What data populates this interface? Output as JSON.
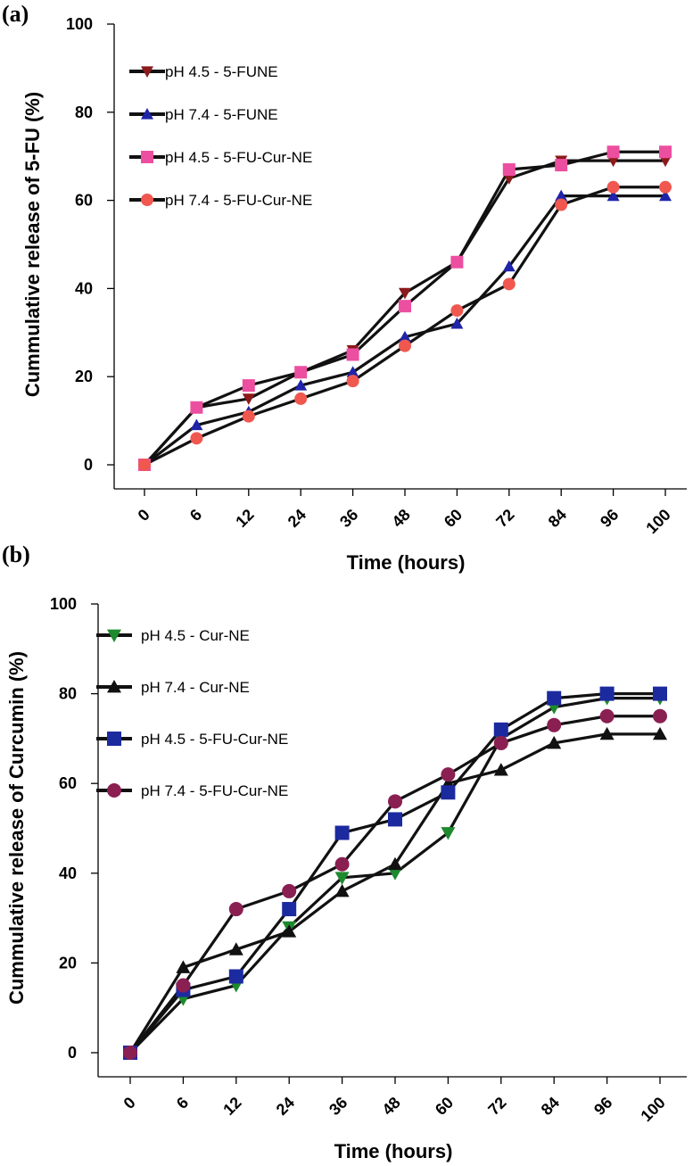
{
  "chart_data": [
    {
      "panel": "(a)",
      "type": "line",
      "xlabel": "Time (hours)",
      "ylabel": "Cummulative release of 5-FU (%)",
      "ylim": [
        0,
        100
      ],
      "yticks": [
        "0",
        "20",
        "40",
        "60",
        "80",
        "100"
      ],
      "categories": [
        "0",
        "6",
        "12",
        "24",
        "36",
        "48",
        "60",
        "72",
        "84",
        "96",
        "100"
      ],
      "series": [
        {
          "name": "pH 4.5 - 5-FUNE",
          "marker": "triangle-down",
          "color": "#8b1a1a",
          "values": [
            0,
            13,
            15,
            21,
            26,
            39,
            46,
            65,
            69,
            69,
            69
          ]
        },
        {
          "name": "pH 7.4 - 5-FUNE",
          "marker": "triangle-up",
          "color": "#1f24a8",
          "values": [
            0,
            9,
            12,
            18,
            21,
            29,
            32,
            45,
            61,
            61,
            61
          ]
        },
        {
          "name": "pH 4.5 - 5-FU-Cur-NE",
          "marker": "square",
          "color": "#ec4fa0",
          "values": [
            0,
            13,
            18,
            21,
            25,
            36,
            46,
            67,
            68,
            71,
            71
          ]
        },
        {
          "name": "pH 7.4 - 5-FU-Cur-NE",
          "marker": "circle",
          "color": "#f0584f",
          "values": [
            0,
            6,
            11,
            15,
            19,
            27,
            35,
            41,
            59,
            63,
            63
          ]
        }
      ]
    },
    {
      "panel": "(b)",
      "type": "line",
      "xlabel": "Time (hours)",
      "ylabel": "Cummulative release of Curcumin (%)",
      "ylim": [
        0,
        100
      ],
      "yticks": [
        "0",
        "20",
        "40",
        "60",
        "80",
        "100"
      ],
      "categories": [
        "0",
        "6",
        "12",
        "24",
        "36",
        "48",
        "60",
        "72",
        "84",
        "96",
        "100"
      ],
      "series": [
        {
          "name": "pH 4.5 - Cur-NE",
          "marker": "triangle-down",
          "color": "#1e8a2e",
          "values": [
            0,
            12,
            15,
            28,
            39,
            40,
            49,
            70,
            77,
            79,
            79
          ]
        },
        {
          "name": "pH 7.4 - Cur-NE",
          "marker": "triangle-up",
          "color": "#111111",
          "values": [
            0,
            19,
            23,
            27,
            36,
            42,
            60,
            63,
            69,
            71,
            71
          ]
        },
        {
          "name": "pH 4.5 - 5-FU-Cur-NE",
          "marker": "square",
          "color": "#1c2aa0",
          "values": [
            0,
            14,
            17,
            32,
            49,
            52,
            58,
            72,
            79,
            80,
            80
          ]
        },
        {
          "name": "pH 7.4 - 5-FU-Cur-NE",
          "marker": "circle",
          "color": "#8a1f52",
          "values": [
            0,
            15,
            32,
            36,
            42,
            56,
            62,
            69,
            73,
            75,
            75
          ]
        }
      ]
    }
  ]
}
